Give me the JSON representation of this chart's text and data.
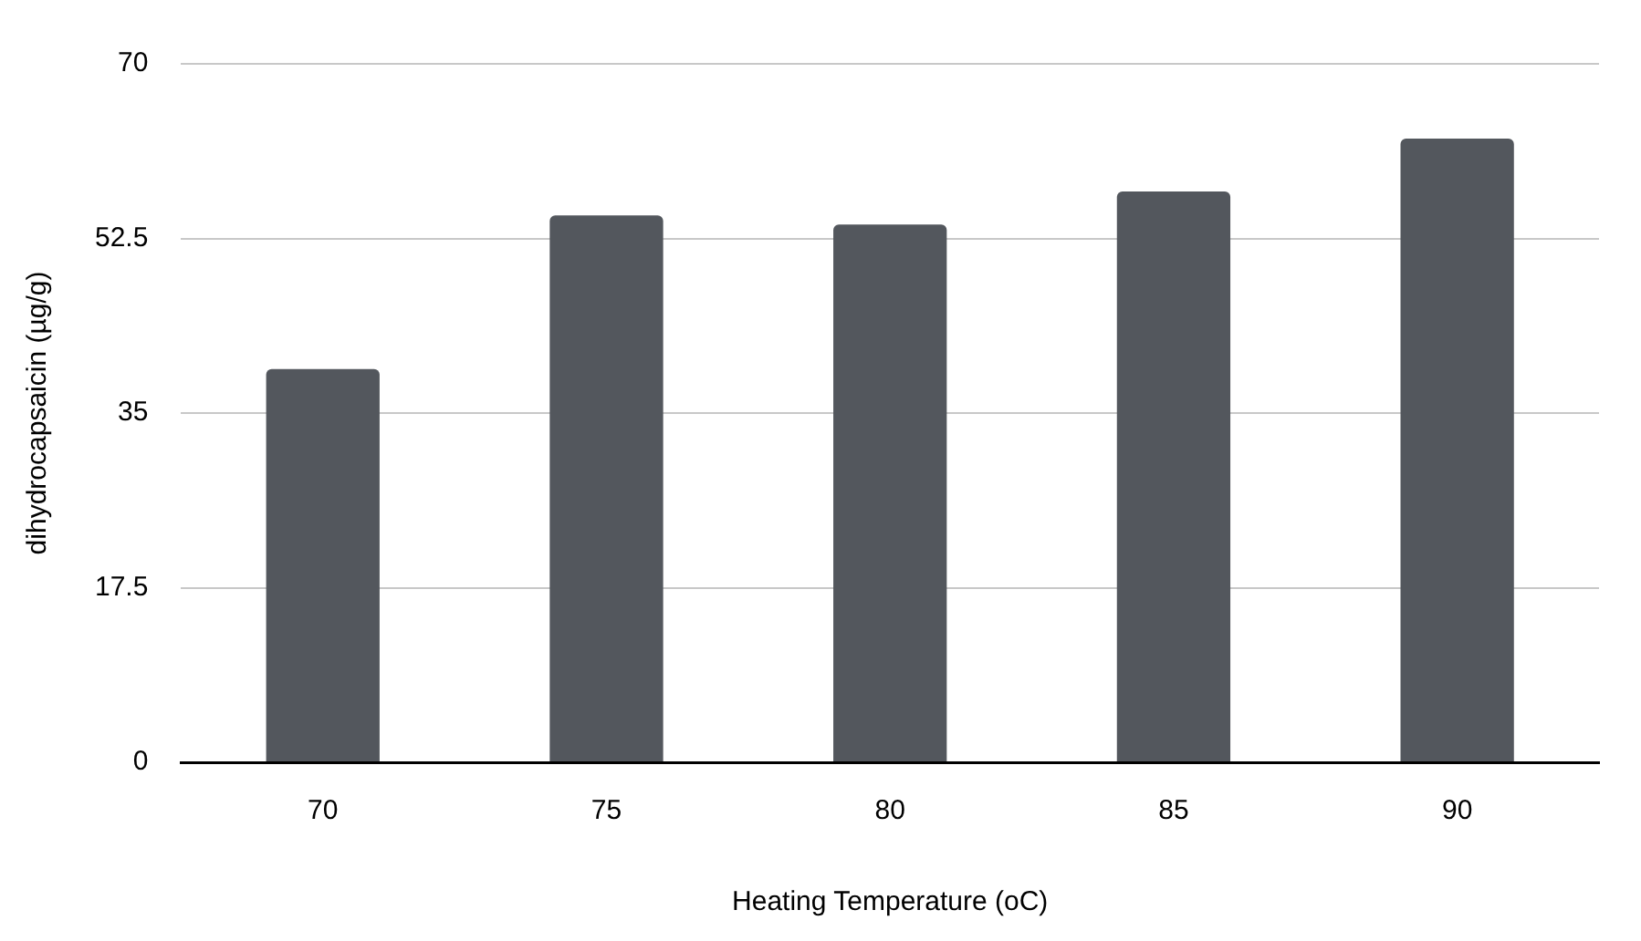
{
  "chart_data": {
    "type": "bar",
    "xlabel": "Heating Temperature (oC)",
    "ylabel": "dihydrocapsaicin (µg/g)",
    "categories": [
      "70",
      "75",
      "80",
      "85",
      "90"
    ],
    "values": [
      39.4,
      54.8,
      53.9,
      57.2,
      62.5
    ],
    "color": "#53575d",
    "ylim": [
      0,
      70
    ],
    "yticks": [
      0,
      17.5,
      35,
      52.5,
      70
    ],
    "grid": "y"
  }
}
